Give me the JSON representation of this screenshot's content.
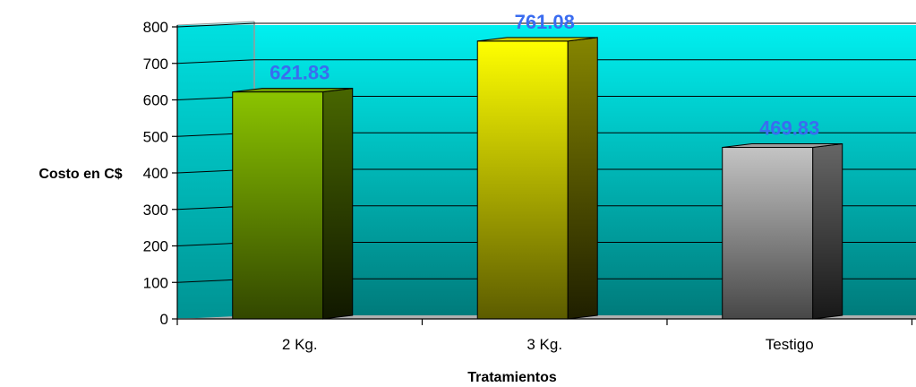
{
  "chart_data": {
    "type": "bar",
    "categories": [
      "2 Kg.",
      "3 Kg.",
      "Testigo"
    ],
    "values": [
      621.83,
      761.08,
      469.83
    ],
    "value_labels": [
      "621.83",
      "761.08",
      "469.83"
    ],
    "xlabel": "Tratamientos",
    "ylabel": "Costo en C$",
    "ylim": [
      0,
      800
    ],
    "yticks": [
      0,
      100,
      200,
      300,
      400,
      500,
      600,
      700,
      800
    ],
    "grid": true,
    "legend": "none",
    "style": "3d-bar",
    "colors": {
      "plot_top": "#00f0f0",
      "plot_bottom": "#007a7a",
      "bars": [
        "#8bc400",
        "#ffff00",
        "#c4c4c4"
      ],
      "data_label": "#3a6cf0"
    }
  }
}
